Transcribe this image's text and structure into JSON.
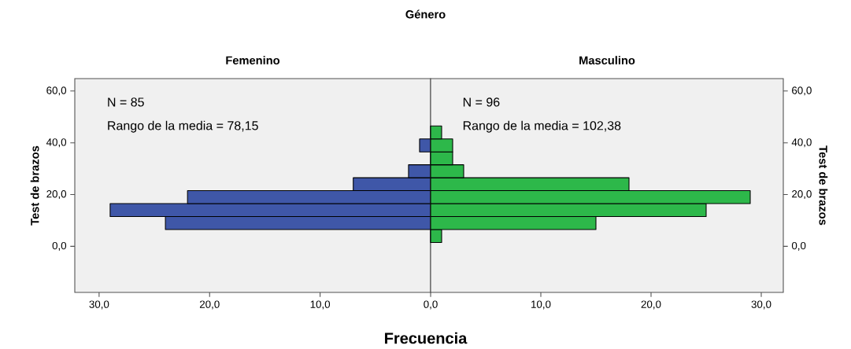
{
  "chart_data": [
    {
      "type": "histogram",
      "title": "Género",
      "subtitle": "Femenino",
      "xlabel": "Frecuencia",
      "ylabel": "Test de brazos",
      "orientation": "horizontal",
      "color": "#3f57a8",
      "bins": [
        1.5,
        6.5,
        11.5,
        16.5,
        21.5,
        26.5,
        31.5,
        36.5,
        41.5,
        46.5
      ],
      "values": [
        0,
        24,
        29,
        22,
        7,
        2,
        0,
        1,
        0
      ],
      "xlim": [
        32.2,
        0
      ],
      "xticks": [
        {
          "value": 30,
          "label": "30,0"
        },
        {
          "value": 20,
          "label": "20,0"
        },
        {
          "value": 10,
          "label": "10,0"
        }
      ],
      "ylim": [
        -17.8,
        64.8
      ],
      "yticks": [
        {
          "value": 0,
          "label": "0,0"
        },
        {
          "value": 20,
          "label": "20,0"
        },
        {
          "value": 40,
          "label": "40,0"
        },
        {
          "value": 60,
          "label": "60,0"
        }
      ],
      "grid": false,
      "annotations": [
        "N = 85",
        "Rango de la media = 78,15"
      ]
    },
    {
      "type": "histogram",
      "subtitle": "Masculino",
      "ylabel": "Test de brazos",
      "orientation": "horizontal",
      "color": "#2db84a",
      "bins": [
        1.5,
        6.5,
        11.5,
        16.5,
        21.5,
        26.5,
        31.5,
        36.5,
        41.5,
        46.5
      ],
      "values": [
        1,
        15,
        25,
        29,
        18,
        3,
        2,
        2,
        1
      ],
      "xlim": [
        0,
        32
      ],
      "xticks": [
        {
          "value": 0,
          "label": "0,0"
        },
        {
          "value": 10,
          "label": "10,0"
        },
        {
          "value": 20,
          "label": "20,0"
        },
        {
          "value": 30,
          "label": "30,0"
        }
      ],
      "ylim": [
        -17.8,
        64.8
      ],
      "yticks": [
        {
          "value": 0,
          "label": "0,0"
        },
        {
          "value": 20,
          "label": "20,0"
        },
        {
          "value": 40,
          "label": "40,0"
        },
        {
          "value": 60,
          "label": "60,0"
        }
      ],
      "grid": false,
      "annotations": [
        "N = 96",
        "Rango de la media = 102,38"
      ]
    }
  ]
}
